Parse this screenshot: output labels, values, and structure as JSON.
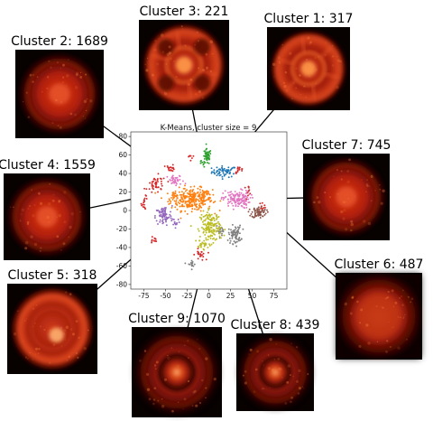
{
  "chart_data": {
    "type": "scatter",
    "title": "K-Means, cluster size = 9",
    "xlabel": "",
    "ylabel": "",
    "xlim": [
      -90,
      90
    ],
    "ylim": [
      -85,
      85
    ],
    "xticks": [
      -75,
      -50,
      -25,
      0,
      25,
      50,
      75
    ],
    "yticks": [
      -80,
      -60,
      -40,
      -20,
      0,
      20,
      40,
      60,
      80
    ],
    "grid": false,
    "series": [
      {
        "id": 1,
        "color": "#1f77b4",
        "clusters": [
          [
            18,
            42,
            12,
            5,
            60
          ]
        ]
      },
      {
        "id": 2,
        "color": "#ff7f0e",
        "clusters": [
          [
            -20,
            12,
            20,
            10,
            260
          ],
          [
            -40,
            14,
            6,
            4,
            20
          ],
          [
            -5,
            20,
            6,
            5,
            25
          ]
        ]
      },
      {
        "id": 3,
        "color": "#2ca02c",
        "clusters": [
          [
            -2,
            58,
            4,
            7,
            45
          ],
          [
            -8,
            50,
            3,
            3,
            8
          ]
        ]
      },
      {
        "id": 4,
        "color": "#d62728",
        "clusters": [
          [
            -60,
            28,
            9,
            8,
            45
          ],
          [
            -44,
            46,
            4,
            3,
            18
          ],
          [
            -74,
            8,
            3,
            6,
            15
          ],
          [
            35,
            44,
            4,
            3,
            15
          ],
          [
            45,
            22,
            4,
            4,
            12
          ],
          [
            -10,
            -48,
            5,
            5,
            20
          ],
          [
            -64,
            -32,
            4,
            4,
            10
          ],
          [
            62,
            5,
            3,
            3,
            8
          ],
          [
            -22,
            58,
            3,
            3,
            8
          ]
        ]
      },
      {
        "id": 5,
        "color": "#9467bd",
        "clusters": [
          [
            -52,
            -6,
            8,
            9,
            80
          ],
          [
            -38,
            -12,
            4,
            4,
            12
          ]
        ]
      },
      {
        "id": 6,
        "color": "#8c564b",
        "clusters": [
          [
            58,
            -2,
            7,
            5,
            70
          ]
        ]
      },
      {
        "id": 7,
        "color": "#e377c2",
        "clusters": [
          [
            32,
            12,
            13,
            8,
            140
          ],
          [
            -38,
            32,
            8,
            5,
            40
          ]
        ]
      },
      {
        "id": 8,
        "color": "#7f7f7f",
        "clusters": [
          [
            30,
            -26,
            6,
            8,
            70
          ],
          [
            -20,
            -58,
            4,
            4,
            15
          ],
          [
            14,
            -22,
            5,
            4,
            20
          ]
        ]
      },
      {
        "id": 9,
        "color": "#bcbd22",
        "clusters": [
          [
            2,
            -18,
            10,
            14,
            170
          ],
          [
            -8,
            -38,
            4,
            4,
            15
          ]
        ]
      }
    ]
  },
  "insets": [
    {
      "label": "Cluster 1: 317",
      "pattern": "cluster1",
      "cx": 342,
      "cy": 76,
      "size": 92,
      "line": [
        253,
        181
      ]
    },
    {
      "label": "Cluster 2: 1689",
      "pattern": "cluster2",
      "cx": 66,
      "cy": 104,
      "size": 98,
      "line": [
        205,
        206
      ]
    },
    {
      "label": "Cluster 3: 221",
      "pattern": "cluster3",
      "cx": 204,
      "cy": 72,
      "size": 100,
      "line": [
        222,
        166
      ]
    },
    {
      "label": "Cluster 4: 1559",
      "pattern": "cluster4",
      "cx": 52,
      "cy": 240,
      "size": 96,
      "line": [
        158,
        218
      ]
    },
    {
      "label": "Cluster 5: 318",
      "pattern": "cluster5",
      "cx": 58,
      "cy": 364,
      "size": 100,
      "line": [
        185,
        252
      ]
    },
    {
      "label": "Cluster 6: 487",
      "pattern": "cluster6",
      "cx": 420,
      "cy": 350,
      "size": 96,
      "line": [
        291,
        233
      ]
    },
    {
      "label": "Cluster 7: 745",
      "pattern": "cluster7",
      "cx": 384,
      "cy": 218,
      "size": 96,
      "line": [
        248,
        221
      ]
    },
    {
      "label": "Cluster 8: 439",
      "pattern": "cluster8",
      "cx": 305,
      "cy": 412,
      "size": 86,
      "line": [
        265,
        287
      ]
    },
    {
      "label": "Cluster 9: 1070",
      "pattern": "cluster9",
      "cx": 196,
      "cy": 412,
      "size": 100,
      "line": [
        232,
        265
      ]
    }
  ]
}
